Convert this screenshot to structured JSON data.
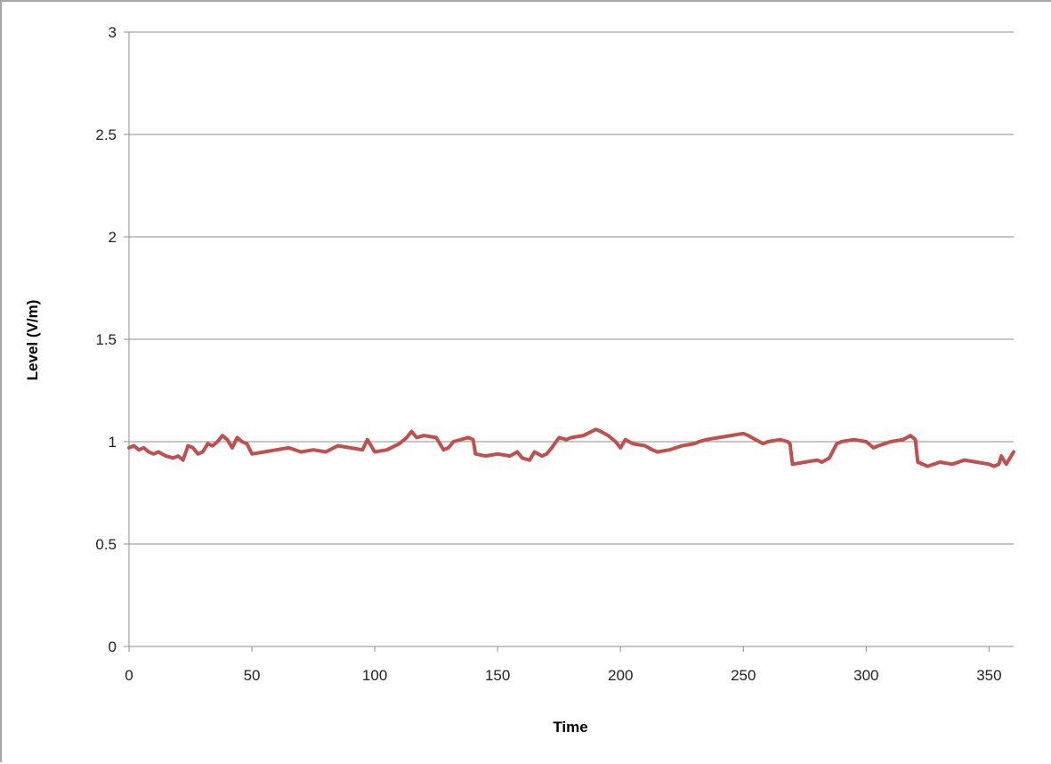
{
  "chart_data": {
    "type": "line",
    "title": "",
    "xlabel": "Time",
    "ylabel": "Level (V/m)",
    "xlim": [
      0,
      360
    ],
    "ylim": [
      0,
      3
    ],
    "x_ticks": [
      "0",
      "50",
      "100",
      "150",
      "200",
      "250",
      "300",
      "350"
    ],
    "y_ticks": [
      "0",
      "0.5",
      "1",
      "1.5",
      "2",
      "2.5",
      "3"
    ],
    "grid": "horizontal",
    "legend": "none",
    "series_color": "#c0504d",
    "series": [
      {
        "x": [
          0,
          2,
          4,
          6,
          8,
          10,
          12,
          15,
          18,
          20,
          22,
          24,
          26,
          28,
          30,
          32,
          34,
          36,
          38,
          40,
          42,
          44,
          46,
          48,
          50,
          55,
          60,
          65,
          70,
          75,
          80,
          85,
          90,
          95,
          97,
          100,
          105,
          110,
          113,
          115,
          117,
          120,
          125,
          128,
          130,
          132,
          135,
          138,
          140,
          141,
          145,
          150,
          155,
          158,
          160,
          163,
          165,
          168,
          170,
          172,
          175,
          178,
          180,
          185,
          190,
          192,
          195,
          198,
          200,
          202,
          205,
          210,
          213,
          215,
          220,
          225,
          230,
          232,
          235,
          240,
          245,
          250,
          252,
          255,
          258,
          260,
          265,
          268,
          269,
          270,
          275,
          280,
          282,
          285,
          288,
          290,
          295,
          300,
          303,
          305,
          310,
          315,
          318,
          320,
          321,
          325,
          330,
          335,
          340,
          345,
          350,
          352,
          354,
          355,
          357,
          360
        ],
        "values": [
          0.97,
          0.98,
          0.96,
          0.97,
          0.95,
          0.94,
          0.95,
          0.93,
          0.92,
          0.93,
          0.91,
          0.98,
          0.97,
          0.94,
          0.95,
          0.99,
          0.98,
          1.0,
          1.03,
          1.01,
          0.97,
          1.02,
          1.0,
          0.99,
          0.94,
          0.95,
          0.96,
          0.97,
          0.95,
          0.96,
          0.95,
          0.98,
          0.97,
          0.96,
          1.01,
          0.95,
          0.96,
          0.99,
          1.02,
          1.05,
          1.02,
          1.03,
          1.02,
          0.96,
          0.97,
          1.0,
          1.01,
          1.02,
          1.01,
          0.94,
          0.93,
          0.94,
          0.93,
          0.95,
          0.92,
          0.91,
          0.95,
          0.93,
          0.94,
          0.97,
          1.02,
          1.01,
          1.02,
          1.03,
          1.06,
          1.05,
          1.03,
          1.0,
          0.97,
          1.01,
          0.99,
          0.98,
          0.96,
          0.95,
          0.96,
          0.98,
          0.99,
          1.0,
          1.01,
          1.02,
          1.03,
          1.04,
          1.03,
          1.01,
          0.99,
          1.0,
          1.01,
          1.0,
          0.99,
          0.89,
          0.9,
          0.91,
          0.9,
          0.92,
          0.99,
          1.0,
          1.01,
          1.0,
          0.97,
          0.98,
          1.0,
          1.01,
          1.03,
          1.01,
          0.9,
          0.88,
          0.9,
          0.89,
          0.91,
          0.9,
          0.89,
          0.88,
          0.89,
          0.93,
          0.89,
          0.95
        ]
      }
    ]
  }
}
